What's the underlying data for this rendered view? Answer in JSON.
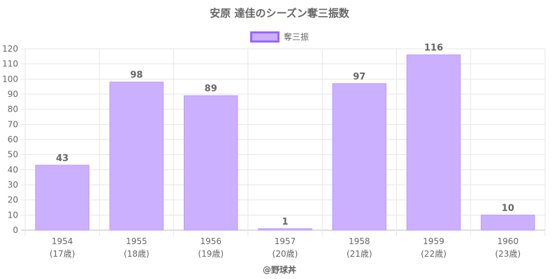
{
  "title": "安原 達佳のシーズン奪三振数",
  "credit": "@野球丼",
  "colors": {
    "bar_fill": "#cbb0ff",
    "bar_border": "#b99cf5",
    "legend_border": "#9966ff",
    "grid": "#e6e6e6",
    "text": "#666666"
  },
  "chart_data": {
    "type": "bar",
    "title": "安原 達佳のシーズン奪三振数",
    "xlabel": "",
    "ylabel": "",
    "categories": [
      "1954",
      "1955",
      "1956",
      "1957",
      "1958",
      "1959",
      "1960"
    ],
    "category_sublabels": [
      "(17歳)",
      "(18歳)",
      "(19歳)",
      "(20歳)",
      "(21歳)",
      "(22歳)",
      "(23歳)"
    ],
    "series": [
      {
        "name": "奪三振",
        "values": [
          43,
          98,
          89,
          1,
          97,
          116,
          10
        ]
      }
    ],
    "ylim": [
      0,
      120
    ],
    "ytick_step": 10,
    "grid": true,
    "legend_position": "top-center"
  }
}
